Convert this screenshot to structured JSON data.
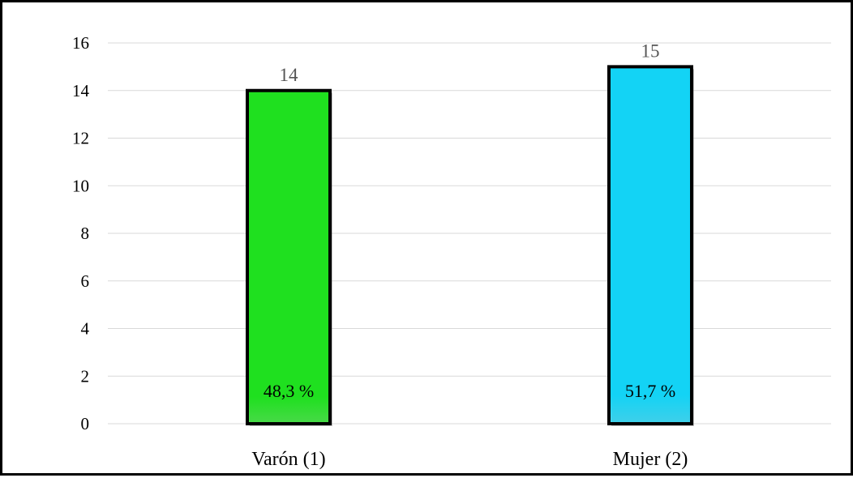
{
  "chart_data": {
    "type": "bar",
    "categories": [
      "Varón (1)",
      "Mujer (2)"
    ],
    "values": [
      14,
      15
    ],
    "data_labels": [
      "14",
      "15"
    ],
    "percent_labels": [
      "48,3 %",
      "51,7 %"
    ],
    "bar_colors": [
      "#1fe01f",
      "#13d3f5"
    ],
    "bar_outline_color": "#000000",
    "y_ticks": [
      0,
      2,
      4,
      6,
      8,
      10,
      12,
      14,
      16
    ],
    "ylim": [
      0,
      16
    ],
    "grid": true,
    "title": "",
    "xlabel": "",
    "ylabel": ""
  }
}
